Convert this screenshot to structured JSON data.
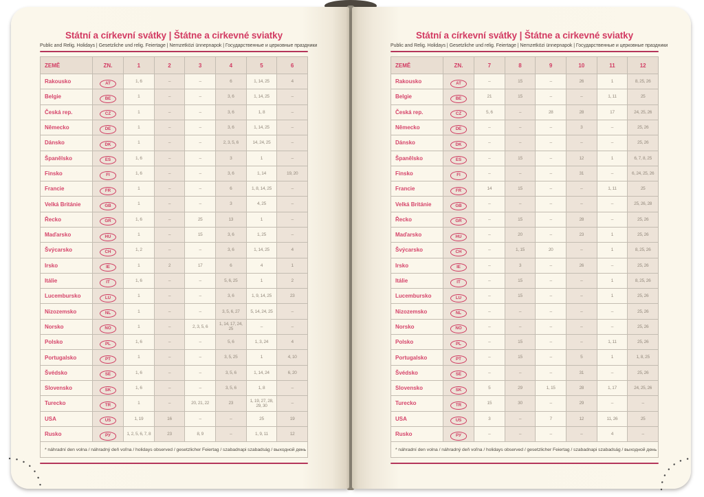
{
  "title": "Státní a církevní svátky | Štátne a cirkevné sviatky",
  "subtitle": "Public and Relig. Holidays | Gesetzliche und relig. Feiertage | Nemzetközi ünnepnapok | Государственные и церковные праздники",
  "footnote": "* náhradní den volna / náhradný deň voľna / holidays observed / gesetzlicher Feiertag / szabadnapi szabadság / выходной день",
  "colors": {
    "accent_red": "#d23a62",
    "rule_red": "#b4355a",
    "page_cream": "#faf6ea",
    "cell_light": "#fbf7eb",
    "cell_dark": "#ede3d8",
    "value_text": "#93897c"
  },
  "left_page": {
    "columns": [
      "ZEMĚ",
      "ZN.",
      "1",
      "2",
      "3",
      "4",
      "5",
      "6"
    ],
    "rows": [
      {
        "country": "Rakousko",
        "code": "AT",
        "values": [
          "1, 6",
          "–",
          "–",
          "6",
          "1, 14, 25",
          "4"
        ]
      },
      {
        "country": "Belgie",
        "code": "BE",
        "values": [
          "1",
          "–",
          "–",
          "3, 6",
          "1, 14, 25",
          "–"
        ]
      },
      {
        "country": "Česká rep.",
        "code": "CZ",
        "values": [
          "1",
          "–",
          "–",
          "3, 6",
          "1, 8",
          "–"
        ]
      },
      {
        "country": "Německo",
        "code": "DE",
        "values": [
          "1",
          "–",
          "–",
          "3, 6",
          "1, 14, 25",
          "–"
        ]
      },
      {
        "country": "Dánsko",
        "code": "DK",
        "values": [
          "1",
          "–",
          "–",
          "2, 3, 5, 6",
          "14, 24, 25",
          "–"
        ]
      },
      {
        "country": "Španělsko",
        "code": "ES",
        "values": [
          "1, 6",
          "–",
          "–",
          "3",
          "1",
          "–"
        ]
      },
      {
        "country": "Finsko",
        "code": "FI",
        "values": [
          "1, 6",
          "–",
          "–",
          "3, 6",
          "1, 14",
          "19, 20"
        ]
      },
      {
        "country": "Francie",
        "code": "FR",
        "values": [
          "1",
          "–",
          "–",
          "6",
          "1, 8, 14, 25",
          "–"
        ]
      },
      {
        "country": "Velká Británie",
        "code": "GB",
        "values": [
          "1",
          "–",
          "–",
          "3",
          "4, 25",
          "–"
        ]
      },
      {
        "country": "Řecko",
        "code": "GR",
        "values": [
          "1, 6",
          "–",
          "25",
          "13",
          "1",
          "–"
        ]
      },
      {
        "country": "Maďarsko",
        "code": "HU",
        "values": [
          "1",
          "–",
          "15",
          "3, 6",
          "1, 25",
          "–"
        ]
      },
      {
        "country": "Švýcarsko",
        "code": "CH",
        "values": [
          "1, 2",
          "–",
          "–",
          "3, 6",
          "1, 14, 25",
          "4"
        ]
      },
      {
        "country": "Irsko",
        "code": "IE",
        "values": [
          "1",
          "2",
          "17",
          "6",
          "4",
          "1"
        ]
      },
      {
        "country": "Itálie",
        "code": "IT",
        "values": [
          "1, 6",
          "–",
          "–",
          "5, 6, 25",
          "1",
          "2"
        ]
      },
      {
        "country": "Lucembursko",
        "code": "LU",
        "values": [
          "1",
          "–",
          "–",
          "3, 6",
          "1, 9, 14, 25",
          "23"
        ]
      },
      {
        "country": "Nizozemsko",
        "code": "NL",
        "values": [
          "1",
          "–",
          "–",
          "3, 5, 6, 27",
          "5, 14, 24, 25",
          "–"
        ]
      },
      {
        "country": "Norsko",
        "code": "NO",
        "values": [
          "1",
          "–",
          "2, 3, 5, 6",
          "1, 14, 17, 24, 25",
          "–",
          "–"
        ]
      },
      {
        "country": "Polsko",
        "code": "PL",
        "values": [
          "1, 6",
          "–",
          "–",
          "5, 6",
          "1, 3, 24",
          "4"
        ]
      },
      {
        "country": "Portugalsko",
        "code": "PT",
        "values": [
          "1",
          "–",
          "–",
          "3, 5, 25",
          "1",
          "4, 10"
        ]
      },
      {
        "country": "Švédsko",
        "code": "SE",
        "values": [
          "1, 6",
          "–",
          "–",
          "3, 5, 6",
          "1, 14, 24",
          "6, 20"
        ]
      },
      {
        "country": "Slovensko",
        "code": "SK",
        "values": [
          "1, 6",
          "–",
          "–",
          "3, 5, 6",
          "1, 8",
          "–"
        ]
      },
      {
        "country": "Turecko",
        "code": "TR",
        "values": [
          "1",
          "–",
          "20, 21, 22",
          "23",
          "1, 19, 27, 28, 29, 30",
          "–"
        ]
      },
      {
        "country": "USA",
        "code": "US",
        "values": [
          "1, 19",
          "16",
          "–",
          "–",
          "25",
          "19"
        ]
      },
      {
        "country": "Rusko",
        "code": "РУ",
        "values": [
          "1, 2, 5, 6, 7, 8",
          "23",
          "8, 9",
          "–",
          "1, 9, 11",
          "12"
        ]
      }
    ]
  },
  "right_page": {
    "columns": [
      "ZEMĚ",
      "ZN.",
      "7",
      "8",
      "9",
      "10",
      "11",
      "12"
    ],
    "rows": [
      {
        "country": "Rakousko",
        "code": "AT",
        "values": [
          "–",
          "15",
          "–",
          "26",
          "1",
          "8, 25, 26"
        ]
      },
      {
        "country": "Belgie",
        "code": "BE",
        "values": [
          "21",
          "15",
          "–",
          "–",
          "1, 11",
          "25"
        ]
      },
      {
        "country": "Česká rep.",
        "code": "CZ",
        "values": [
          "5, 6",
          "–",
          "28",
          "28",
          "17",
          "24, 25, 26"
        ]
      },
      {
        "country": "Německo",
        "code": "DE",
        "values": [
          "–",
          "–",
          "–",
          "3",
          "–",
          "25, 26"
        ]
      },
      {
        "country": "Dánsko",
        "code": "DK",
        "values": [
          "–",
          "–",
          "–",
          "–",
          "–",
          "25, 26"
        ]
      },
      {
        "country": "Španělsko",
        "code": "ES",
        "values": [
          "–",
          "15",
          "–",
          "12",
          "1",
          "6, 7, 8, 25"
        ]
      },
      {
        "country": "Finsko",
        "code": "FI",
        "values": [
          "–",
          "–",
          "–",
          "31",
          "–",
          "6, 24, 25, 26"
        ]
      },
      {
        "country": "Francie",
        "code": "FR",
        "values": [
          "14",
          "15",
          "–",
          "–",
          "1, 11",
          "25"
        ]
      },
      {
        "country": "Velká Británie",
        "code": "GB",
        "values": [
          "–",
          "–",
          "–",
          "–",
          "–",
          "25, 26, 28"
        ]
      },
      {
        "country": "Řecko",
        "code": "GR",
        "values": [
          "–",
          "15",
          "–",
          "28",
          "–",
          "25, 26"
        ]
      },
      {
        "country": "Maďarsko",
        "code": "HU",
        "values": [
          "–",
          "20",
          "–",
          "23",
          "1",
          "25, 26"
        ]
      },
      {
        "country": "Švýcarsko",
        "code": "CH",
        "values": [
          "–",
          "1, 15",
          "20",
          "–",
          "1",
          "8, 25, 26"
        ]
      },
      {
        "country": "Irsko",
        "code": "IE",
        "values": [
          "–",
          "3",
          "–",
          "26",
          "–",
          "25, 26"
        ]
      },
      {
        "country": "Itálie",
        "code": "IT",
        "values": [
          "–",
          "15",
          "–",
          "–",
          "1",
          "8, 25, 26"
        ]
      },
      {
        "country": "Lucembursko",
        "code": "LU",
        "values": [
          "–",
          "15",
          "–",
          "–",
          "1",
          "25, 26"
        ]
      },
      {
        "country": "Nizozemsko",
        "code": "NL",
        "values": [
          "–",
          "–",
          "–",
          "–",
          "–",
          "25, 26"
        ]
      },
      {
        "country": "Norsko",
        "code": "NO",
        "values": [
          "–",
          "–",
          "–",
          "–",
          "–",
          "25, 26"
        ]
      },
      {
        "country": "Polsko",
        "code": "PL",
        "values": [
          "–",
          "15",
          "–",
          "–",
          "1, 11",
          "25, 26"
        ]
      },
      {
        "country": "Portugalsko",
        "code": "PT",
        "values": [
          "–",
          "15",
          "–",
          "5",
          "1",
          "1, 8, 25"
        ]
      },
      {
        "country": "Švédsko",
        "code": "SE",
        "values": [
          "–",
          "–",
          "–",
          "31",
          "–",
          "25, 26"
        ]
      },
      {
        "country": "Slovensko",
        "code": "SK",
        "values": [
          "5",
          "29",
          "1, 15",
          "28",
          "1, 17",
          "24, 25, 26"
        ]
      },
      {
        "country": "Turecko",
        "code": "TR",
        "values": [
          "15",
          "30",
          "–",
          "29",
          "–",
          "–"
        ]
      },
      {
        "country": "USA",
        "code": "US",
        "values": [
          "3",
          "–",
          "7",
          "12",
          "11, 26",
          "25"
        ]
      },
      {
        "country": "Rusko",
        "code": "РУ",
        "values": [
          "–",
          "–",
          "–",
          "–",
          "4",
          "–"
        ]
      }
    ]
  }
}
